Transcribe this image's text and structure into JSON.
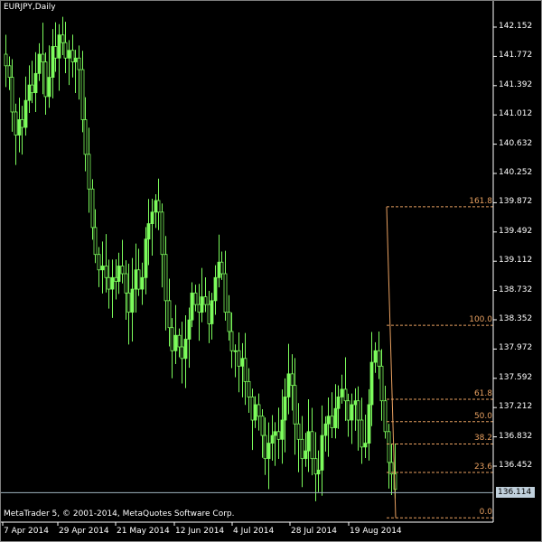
{
  "window": {
    "title": "EURJPY,Daily"
  },
  "footer": {
    "copyright": "MetaTrader 5, © 2001-2014, MetaQuotes Software Corp."
  },
  "current_price": "136.114",
  "colors": {
    "background": "#000000",
    "candle": "#7cfc5c",
    "axis": "#ffffff",
    "fibonacci": "#e8a060",
    "price_line": "#a0b4c0"
  },
  "chart_data": {
    "type": "candlestick",
    "symbol": "EURJPY",
    "timeframe": "Daily",
    "y_ticks": [
      "142.152",
      "141.772",
      "141.392",
      "141.012",
      "140.632",
      "140.252",
      "139.872",
      "139.492",
      "139.112",
      "138.732",
      "138.352",
      "137.972",
      "137.592",
      "137.212",
      "136.832",
      "136.452"
    ],
    "x_ticks": [
      "7 Apr 2014",
      "29 Apr 2014",
      "21 May 2014",
      "12 Jun 2014",
      "4 Jul 2014",
      "28 Jul 2014",
      "19 Aug 2014"
    ],
    "ylim": [
      135.9,
      142.4
    ],
    "grid": false,
    "fibonacci_levels": [
      {
        "label": "161.8",
        "price": 139.82
      },
      {
        "label": "100.0",
        "price": 138.28
      },
      {
        "label": "61.8",
        "price": 137.32
      },
      {
        "label": "50.0",
        "price": 137.03
      },
      {
        "label": "38.2",
        "price": 136.74
      },
      {
        "label": "23.6",
        "price": 136.37
      },
      {
        "label": "0.0",
        "price": 135.78
      }
    ],
    "closes": [
      141.65,
      141.5,
      141.05,
      140.75,
      140.95,
      140.85,
      141.2,
      141.4,
      141.3,
      141.55,
      141.8,
      141.7,
      141.25,
      141.5,
      141.9,
      141.75,
      142.05,
      141.95,
      141.75,
      141.85,
      141.7,
      141.75,
      141.6,
      140.95,
      140.5,
      140.05,
      139.55,
      139.2,
      139.0,
      139.05,
      138.9,
      138.75,
      138.9,
      138.85,
      139.05,
      138.95,
      138.7,
      138.45,
      138.75,
      139.0,
      138.75,
      138.9,
      139.4,
      139.6,
      139.75,
      139.9,
      139.75,
      139.2,
      138.6,
      138.25,
      137.95,
      138.15,
      138.0,
      137.85,
      138.1,
      138.35,
      138.7,
      138.55,
      138.45,
      138.65,
      138.55,
      138.3,
      138.6,
      138.9,
      139.1,
      138.95,
      138.45,
      138.2,
      137.95,
      137.95,
      137.75,
      137.85,
      137.55,
      137.35,
      137.05,
      137.25,
      137.1,
      136.85,
      136.55,
      136.75,
      136.85,
      136.9,
      136.8,
      137.05,
      137.35,
      137.65,
      137.5,
      137.0,
      136.8,
      136.55,
      136.65,
      136.9,
      136.55,
      136.35,
      136.4,
      136.85,
      137.0,
      137.1,
      136.95,
      137.2,
      137.35,
      137.45,
      137.3,
      137.05,
      137.25,
      137.3,
      137.05,
      136.7,
      136.75,
      137.25,
      137.8,
      137.95,
      137.75,
      137.3,
      136.9,
      136.5,
      136.35,
      136.15
    ]
  }
}
